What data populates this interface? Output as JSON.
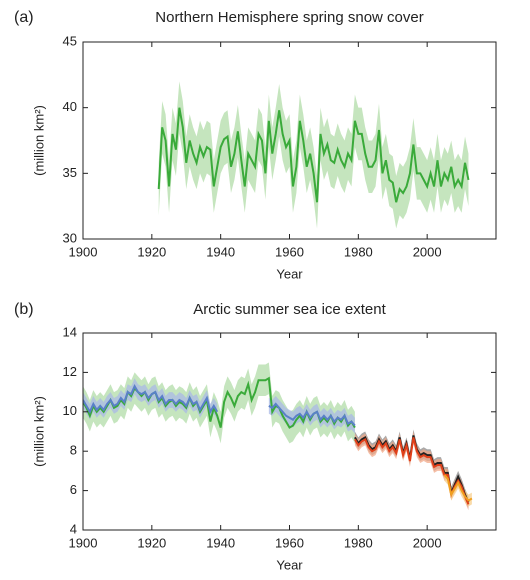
{
  "chart_data": [
    {
      "type": "line",
      "panel": "(a)",
      "title": "Northern Hemisphere spring snow cover",
      "x_label": "Year",
      "y_label": "(million km²)",
      "xlim": [
        1900,
        2020
      ],
      "xticks": [
        1900,
        1920,
        1940,
        1960,
        1980,
        2000
      ],
      "ylim": [
        30,
        45
      ],
      "yticks": [
        30,
        35,
        40,
        45
      ],
      "series": [
        {
          "color": "#3aaa3a",
          "band_color": "#b2dca8",
          "band": 2.0,
          "x": [
            1922,
            1923,
            1924,
            1925,
            1926,
            1927,
            1928,
            1929,
            1930,
            1931,
            1932,
            1933,
            1934,
            1935,
            1936,
            1937,
            1938,
            1939,
            1940,
            1941,
            1942,
            1943,
            1944,
            1945,
            1946,
            1947,
            1948,
            1949,
            1950,
            1951,
            1952,
            1953,
            1954,
            1955,
            1956,
            1957,
            1958,
            1959,
            1960,
            1961,
            1962,
            1963,
            1964,
            1965,
            1966,
            1967,
            1968,
            1969,
            1970,
            1971,
            1972,
            1973,
            1974,
            1975,
            1976,
            1977,
            1978,
            1979,
            1980,
            1981,
            1982,
            1983,
            1984,
            1985,
            1986,
            1987,
            1988,
            1989,
            1990,
            1991,
            1992,
            1993,
            1994,
            1995,
            1996,
            1997,
            1998,
            1999,
            2000,
            2001,
            2002,
            2003,
            2004,
            2005,
            2006,
            2007,
            2008,
            2009,
            2010,
            2011,
            2012
          ],
          "values": [
            33.8,
            38.5,
            37.5,
            34.0,
            38.0,
            36.8,
            40.0,
            38.5,
            35.8,
            37.5,
            36.5,
            35.8,
            37.0,
            36.3,
            37.0,
            36.8,
            34.0,
            35.5,
            37.0,
            37.6,
            37.8,
            35.5,
            36.5,
            38.2,
            36.0,
            34.0,
            36.5,
            36.0,
            35.5,
            38.0,
            37.5,
            35.0,
            39.0,
            36.5,
            38.0,
            39.8,
            38.0,
            37.0,
            37.5,
            34.0,
            35.5,
            39.0,
            37.5,
            35.5,
            36.5,
            35.0,
            32.8,
            38.0,
            36.5,
            37.2,
            36.0,
            35.8,
            36.8,
            36.0,
            35.5,
            36.5,
            36.0,
            39.0,
            38.0,
            38.0,
            36.5,
            35.5,
            35.5,
            36.0,
            38.3,
            35.0,
            36.0,
            34.5,
            34.3,
            32.8,
            33.8,
            33.5,
            34.0,
            35.0,
            37.2,
            35.0,
            35.0,
            34.5,
            34.0,
            35.0,
            34.0,
            36.0,
            34.0,
            35.0,
            34.5,
            35.5,
            34.0,
            34.5,
            34.0,
            35.8,
            34.5
          ]
        }
      ]
    },
    {
      "type": "line",
      "panel": "(b)",
      "title": "Arctic summer sea ice extent",
      "x_label": "Year",
      "y_label": "(million km²)",
      "xlim": [
        1900,
        2020
      ],
      "xticks": [
        1900,
        1920,
        1940,
        1960,
        1980,
        2000
      ],
      "ylim": [
        4,
        14
      ],
      "yticks": [
        4,
        6,
        8,
        10,
        12,
        14
      ],
      "series": [
        {
          "color": "#3aaa3a",
          "band_color": "#b2dca8",
          "band": 0.8,
          "x": [
            1900,
            1901,
            1902,
            1903,
            1904,
            1905,
            1906,
            1907,
            1908,
            1909,
            1910,
            1911,
            1912,
            1913,
            1914,
            1915,
            1916,
            1917,
            1918,
            1919,
            1920,
            1921,
            1922,
            1923,
            1924,
            1925,
            1926,
            1927,
            1928,
            1929,
            1930,
            1931,
            1932,
            1933,
            1934,
            1935,
            1936,
            1937,
            1938,
            1939,
            1940,
            1941,
            1942,
            1943,
            1944,
            1945,
            1946,
            1947,
            1948,
            1949,
            1950,
            1951,
            1952,
            1953,
            1954,
            1955,
            1956,
            1957,
            1958,
            1959,
            1960,
            1961,
            1962,
            1963,
            1964,
            1965,
            1966,
            1967,
            1968,
            1969,
            1970,
            1971,
            1972,
            1973,
            1974,
            1975,
            1976,
            1977,
            1978,
            1979
          ],
          "values": [
            10.5,
            10.2,
            9.8,
            10.3,
            10.0,
            10.2,
            10.0,
            10.3,
            10.6,
            10.2,
            10.3,
            10.6,
            10.4,
            11.0,
            10.8,
            11.2,
            11.0,
            10.8,
            11.0,
            10.6,
            10.9,
            11.0,
            10.5,
            10.7,
            10.3,
            10.5,
            10.6,
            10.3,
            10.5,
            10.4,
            10.2,
            10.7,
            10.3,
            10.5,
            10.0,
            10.3,
            10.6,
            9.5,
            10.2,
            9.8,
            9.2,
            10.5,
            11.0,
            10.7,
            10.3,
            10.8,
            11.0,
            10.9,
            11.4,
            10.6,
            11.0,
            11.6,
            11.6,
            11.6,
            11.7,
            10.0,
            10.3,
            10.2,
            9.8,
            9.5,
            9.2,
            9.3,
            9.6,
            9.8,
            9.5,
            10.0,
            9.6,
            9.9,
            10.0,
            9.5,
            9.7,
            9.5,
            9.8,
            9.4,
            9.7,
            9.5,
            9.8,
            9.3,
            9.5,
            9.2
          ]
        },
        {
          "color": "#5a80c8",
          "band_color": "#aab8e6",
          "band": 0.4,
          "x": [
            1900,
            1901,
            1902,
            1903,
            1904,
            1905,
            1906,
            1907,
            1908,
            1909,
            1910,
            1911,
            1912,
            1913,
            1914,
            1915,
            1916,
            1917,
            1918,
            1919,
            1920,
            1921,
            1922,
            1923,
            1924,
            1925,
            1926,
            1927,
            1928,
            1929,
            1930,
            1931,
            1932,
            1933,
            1934,
            1935,
            1936,
            1937,
            1938,
            1939,
            1940,
            1941,
            1942,
            1943,
            1944,
            1945,
            1946,
            1947,
            1948,
            1949,
            1950,
            1951,
            1952,
            1953,
            1954,
            1955,
            1956,
            1957,
            1958,
            1959,
            1960,
            1961,
            1962,
            1963,
            1964,
            1965,
            1966,
            1967,
            1968,
            1969,
            1970,
            1971,
            1972,
            1973,
            1974,
            1975,
            1976,
            1977,
            1978,
            1979
          ],
          "values": [
            10.6,
            10.3,
            10.0,
            10.4,
            10.1,
            10.3,
            10.1,
            10.4,
            10.6,
            10.3,
            10.4,
            10.7,
            10.5,
            11.0,
            10.9,
            11.3,
            11.0,
            10.9,
            11.0,
            10.7,
            10.9,
            11.0,
            10.6,
            10.8,
            10.4,
            10.6,
            10.6,
            10.4,
            10.6,
            10.5,
            10.3,
            10.7,
            10.4,
            10.5,
            10.1,
            10.4,
            10.7,
            10.0,
            10.3,
            10.0,
            null,
            null,
            null,
            null,
            null,
            null,
            null,
            null,
            null,
            null,
            null,
            null,
            null,
            null,
            10.3,
            10.2,
            10.4,
            10.2,
            10.0,
            9.8,
            9.7,
            9.6,
            9.8,
            9.9,
            9.7,
            10.0,
            9.7,
            9.9,
            10.0,
            9.6,
            9.8,
            9.6,
            9.8,
            9.5,
            9.7,
            9.6,
            9.8,
            9.4,
            9.5,
            9.3
          ]
        },
        {
          "color": "#222222",
          "band_color": "#8c8c8c",
          "band": 0.3,
          "x": [
            1979,
            1980,
            1981,
            1982,
            1983,
            1984,
            1985,
            1986,
            1987,
            1988,
            1989,
            1990,
            1991,
            1992,
            1993,
            1994,
            1995,
            1996,
            1997,
            1998,
            1999,
            2000,
            2001,
            2002,
            2003,
            2004,
            2005,
            2006,
            2007,
            2008,
            2009,
            2010,
            2011,
            2012
          ],
          "values": [
            8.7,
            8.4,
            8.6,
            8.7,
            8.3,
            8.1,
            8.2,
            8.6,
            8.3,
            8.5,
            8.1,
            8.3,
            8.0,
            8.7,
            7.9,
            8.4,
            7.6,
            8.8,
            8.1,
            7.8,
            7.9,
            7.8,
            7.8,
            7.3,
            7.4,
            7.4,
            6.9,
            6.9,
            5.9,
            6.3,
            6.7,
            6.3,
            5.8,
            5.4
          ]
        },
        {
          "color": "#e0401a",
          "band_color": "#f2a98a",
          "band": 0.3,
          "x": [
            1979,
            1980,
            1981,
            1982,
            1983,
            1984,
            1985,
            1986,
            1987,
            1988,
            1989,
            1990,
            1991,
            1992,
            1993,
            1994,
            1995,
            1996,
            1997,
            1998,
            1999,
            2000,
            2001,
            2002,
            2003,
            2004,
            2005,
            2006,
            2007,
            2008,
            2009,
            2010,
            2011,
            2012
          ],
          "values": [
            8.6,
            8.3,
            8.5,
            8.6,
            8.2,
            8.0,
            8.1,
            8.5,
            8.2,
            8.4,
            8.0,
            8.2,
            7.9,
            8.6,
            7.8,
            8.3,
            7.5,
            8.7,
            8.0,
            7.7,
            7.8,
            7.7,
            7.7,
            7.2,
            7.3,
            7.3,
            6.8,
            6.8,
            5.8,
            6.2,
            6.5,
            6.2,
            5.7,
            5.3
          ]
        },
        {
          "color": "#f0a020",
          "band_color": "#f7cf8e",
          "band": 0.3,
          "x": [
            2005,
            2006,
            2007,
            2008,
            2009,
            2010,
            2011,
            2012,
            2013
          ],
          "values": [
            6.8,
            6.6,
            5.8,
            6.1,
            6.4,
            6.0,
            5.7,
            5.5,
            5.6
          ]
        }
      ]
    }
  ]
}
